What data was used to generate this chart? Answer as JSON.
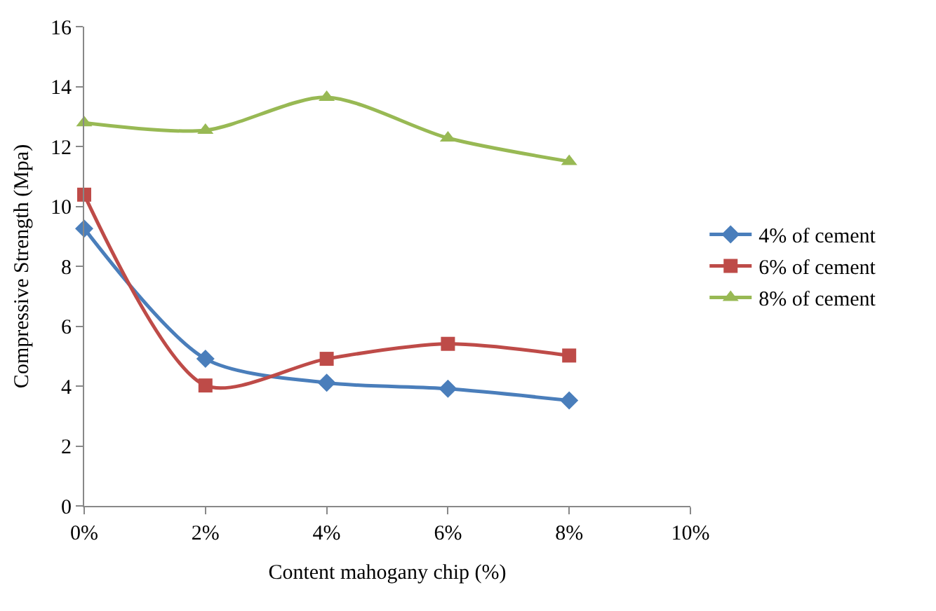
{
  "chart_data": {
    "type": "line",
    "xlabel": "Content mahogany chip (%)",
    "ylabel": "Compressive Strength (Mpa)",
    "x": [
      0,
      2,
      4,
      6,
      8
    ],
    "series": [
      {
        "name": "4% of cement",
        "color": "#4a7ebb",
        "marker": "diamond",
        "values": [
          9.26,
          4.91,
          4.11,
          3.91,
          3.52
        ]
      },
      {
        "name": "6% of cement",
        "color": "#be4b48",
        "marker": "square",
        "values": [
          10.39,
          4.02,
          4.91,
          5.41,
          5.02
        ]
      },
      {
        "name": "8% of cement",
        "color": "#98b954",
        "marker": "triangle",
        "values": [
          12.79,
          12.54,
          13.64,
          12.28,
          11.5
        ]
      }
    ],
    "xlim": [
      0,
      10
    ],
    "xticks": [
      {
        "value": 0,
        "label": "0%"
      },
      {
        "value": 2,
        "label": "2%"
      },
      {
        "value": 4,
        "label": "4%"
      },
      {
        "value": 6,
        "label": "6%"
      },
      {
        "value": 8,
        "label": "8%"
      },
      {
        "value": 10,
        "label": "10%"
      }
    ],
    "ylim": [
      0,
      16
    ],
    "yticks": [
      0,
      2,
      4,
      6,
      8,
      10,
      12,
      14,
      16
    ],
    "grid": false,
    "legend": "right",
    "line_style": "solid"
  }
}
